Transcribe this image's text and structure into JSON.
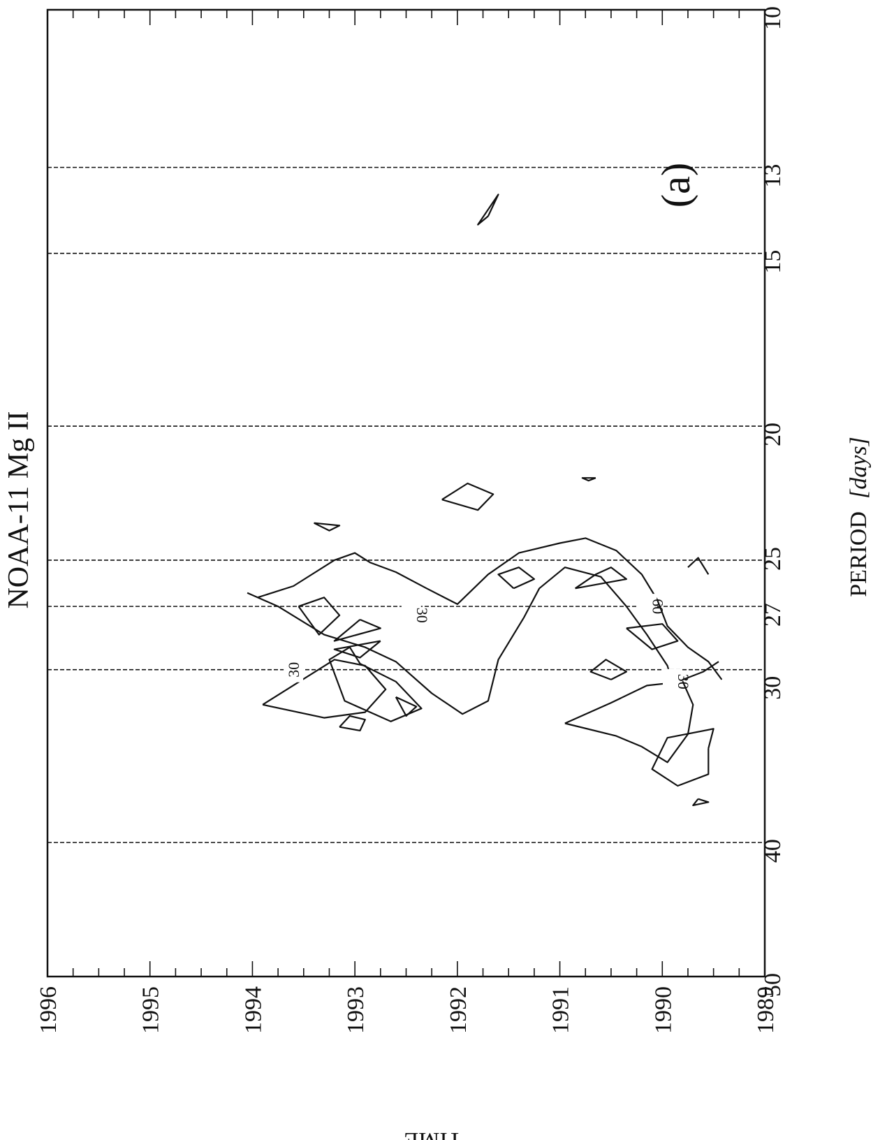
{
  "chart_data": {
    "type": "contour",
    "title": "NOAA-11 Mg II",
    "panel_label": "(a)",
    "xlabel": "PERIOD",
    "xunit": "[days]",
    "ylabel": "TIME",
    "x_scale": "log",
    "xlim": [
      50,
      10
    ],
    "ylim": [
      1989,
      1996
    ],
    "x_ticks": [
      50,
      40,
      30,
      27,
      25,
      20,
      15,
      13,
      10
    ],
    "y_ticks": [
      1989,
      1990,
      1991,
      1992,
      1993,
      1994,
      1995,
      1996
    ],
    "reference_periods": [
      40,
      30,
      27,
      25,
      20,
      15,
      13,
      10
    ],
    "contour_labels": [
      "30",
      "30",
      "60",
      "30"
    ],
    "contours": [
      [
        [
          26.6,
          1993.95
        ],
        [
          26.1,
          1993.6
        ],
        [
          25.0,
          1993.2
        ],
        [
          24.7,
          1993.0
        ],
        [
          25.1,
          1992.85
        ],
        [
          25.5,
          1992.6
        ],
        [
          26.2,
          1992.3
        ],
        [
          26.9,
          1992.0
        ],
        [
          25.6,
          1991.7
        ],
        [
          24.7,
          1991.4
        ],
        [
          24.3,
          1991.0
        ],
        [
          24.1,
          1990.75
        ],
        [
          24.6,
          1990.45
        ],
        [
          25.6,
          1990.2
        ],
        [
          26.7,
          1990.05
        ],
        [
          27.9,
          1989.95
        ],
        [
          28.9,
          1989.75
        ],
        [
          29.6,
          1989.55
        ],
        [
          30.5,
          1989.42
        ]
      ],
      [
        [
          26.4,
          1994.05
        ],
        [
          27.0,
          1993.75
        ],
        [
          28.3,
          1993.3
        ],
        [
          28.9,
          1992.9
        ],
        [
          29.6,
          1992.6
        ],
        [
          31.2,
          1992.25
        ],
        [
          32.3,
          1991.95
        ],
        [
          31.6,
          1991.7
        ],
        [
          29.5,
          1991.6
        ],
        [
          27.5,
          1991.35
        ],
        [
          26.2,
          1991.2
        ],
        [
          25.3,
          1990.95
        ],
        [
          25.7,
          1990.6
        ],
        [
          27.0,
          1990.35
        ],
        [
          28.3,
          1990.15
        ],
        [
          29.8,
          1989.95
        ],
        [
          30.7,
          1989.9
        ],
        [
          30.1,
          1989.6
        ],
        [
          29.6,
          1989.45
        ]
      ],
      [
        [
          28.9,
          1993.05
        ],
        [
          29.5,
          1993.25
        ],
        [
          31.6,
          1993.1
        ],
        [
          32.7,
          1992.65
        ],
        [
          32.0,
          1992.35
        ],
        [
          30.6,
          1992.6
        ],
        [
          29.7,
          1992.95
        ],
        [
          28.9,
          1993.05
        ]
      ],
      [
        [
          31.8,
          1993.9
        ],
        [
          29.5,
          1993.2
        ],
        [
          29.8,
          1992.9
        ],
        [
          31.0,
          1992.7
        ],
        [
          32.2,
          1992.9
        ],
        [
          32.5,
          1993.3
        ],
        [
          31.8,
          1993.9
        ]
      ],
      [
        [
          27.0,
          1993.55
        ],
        [
          28.3,
          1993.35
        ],
        [
          27.4,
          1993.15
        ],
        [
          26.6,
          1993.3
        ],
        [
          27.0,
          1993.55
        ]
      ],
      [
        [
          28.6,
          1992.75
        ],
        [
          29.4,
          1992.95
        ],
        [
          29.0,
          1993.2
        ],
        [
          28.6,
          1992.75
        ]
      ],
      [
        [
          27.6,
          1992.95
        ],
        [
          28.6,
          1993.2
        ],
        [
          28.0,
          1992.75
        ],
        [
          27.6,
          1992.95
        ]
      ],
      [
        [
          31.4,
          1992.6
        ],
        [
          31.9,
          1992.4
        ],
        [
          32.4,
          1992.5
        ],
        [
          31.4,
          1992.6
        ]
      ],
      [
        [
          26.2,
          1991.45
        ],
        [
          25.6,
          1991.6
        ],
        [
          25.3,
          1991.4
        ],
        [
          25.8,
          1991.25
        ],
        [
          26.2,
          1991.45
        ]
      ],
      [
        [
          26.2,
          1990.85
        ],
        [
          25.6,
          1990.65
        ],
        [
          25.3,
          1990.5
        ],
        [
          25.8,
          1990.35
        ],
        [
          26.2,
          1990.85
        ]
      ],
      [
        [
          28.0,
          1990.35
        ],
        [
          29.0,
          1990.1
        ],
        [
          28.6,
          1989.85
        ],
        [
          27.8,
          1990.0
        ],
        [
          28.0,
          1990.35
        ]
      ],
      [
        [
          30.5,
          1990.5
        ],
        [
          30.1,
          1990.7
        ],
        [
          29.5,
          1990.55
        ],
        [
          30.1,
          1990.35
        ],
        [
          30.5,
          1990.5
        ]
      ],
      [
        [
          32.8,
          1990.95
        ],
        [
          31.7,
          1990.5
        ],
        [
          30.8,
          1990.15
        ],
        [
          30.6,
          1989.8
        ],
        [
          31.8,
          1989.7
        ],
        [
          33.4,
          1989.75
        ],
        [
          35.0,
          1989.95
        ],
        [
          34.1,
          1990.2
        ],
        [
          33.5,
          1990.45
        ],
        [
          32.8,
          1990.95
        ]
      ],
      [
        [
          34.2,
          1989.55
        ],
        [
          33.1,
          1989.5
        ],
        [
          33.6,
          1989.95
        ],
        [
          35.4,
          1990.1
        ],
        [
          36.4,
          1989.85
        ],
        [
          35.7,
          1989.55
        ],
        [
          34.2,
          1989.55
        ]
      ],
      [
        [
          33.0,
          1993.15
        ],
        [
          32.4,
          1993.05
        ],
        [
          32.6,
          1992.9
        ],
        [
          33.2,
          1992.95
        ],
        [
          33.0,
          1993.15
        ]
      ],
      [
        [
          22.6,
          1992.15
        ],
        [
          22.0,
          1991.9
        ],
        [
          22.4,
          1991.65
        ],
        [
          23.0,
          1991.8
        ],
        [
          22.6,
          1992.15
        ]
      ],
      [
        [
          23.5,
          1993.4
        ],
        [
          23.8,
          1993.25
        ],
        [
          23.6,
          1993.15
        ],
        [
          23.5,
          1993.4
        ]
      ],
      [
        [
          14.1,
          1991.7
        ],
        [
          14.3,
          1991.8
        ],
        [
          13.6,
          1991.6
        ],
        [
          14.1,
          1991.7
        ]
      ],
      [
        [
          21.8,
          1990.65
        ],
        [
          21.9,
          1990.72
        ],
        [
          21.8,
          1990.78
        ],
        [
          21.8,
          1990.65
        ]
      ],
      [
        [
          37.2,
          1989.65
        ],
        [
          37.6,
          1989.7
        ],
        [
          37.4,
          1989.55
        ],
        [
          37.2,
          1989.65
        ]
      ],
      [
        [
          25.6,
          1989.55
        ],
        [
          24.9,
          1989.65
        ],
        [
          25.3,
          1989.75
        ]
      ]
    ]
  }
}
